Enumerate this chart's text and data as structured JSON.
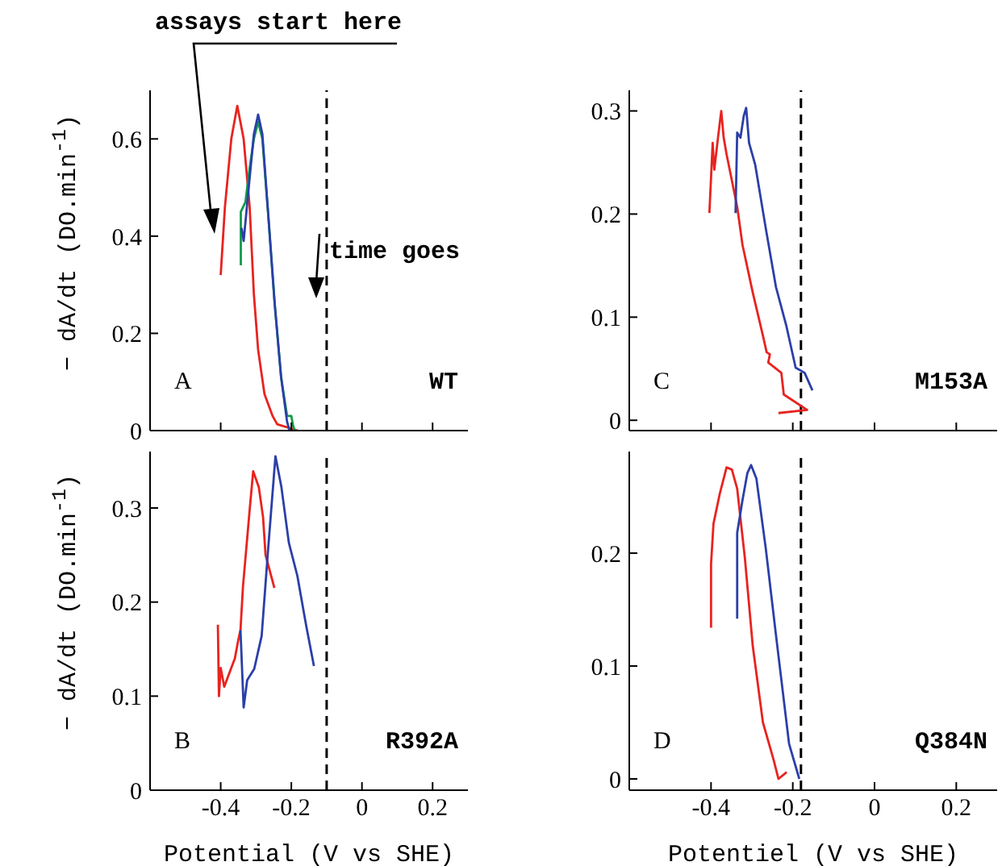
{
  "chart_data": [
    {
      "type": "line",
      "ylabel": "− dA/dt (DO.min$^{-1}$)",
      "annotations": [
        "A",
        "WT",
        "assays start here",
        "time goes"
      ],
      "xlim": [
        -0.6,
        0.3
      ],
      "xticks": [
        -0.4,
        -0.2,
        0,
        0.2
      ],
      "ylim": [
        0,
        0.7
      ],
      "yticks": [
        0,
        0.2,
        0.4,
        0.6
      ],
      "tick_labels": "y",
      "ref_lines": [
        {
          "axis": "x",
          "value": -0.1,
          "color": "#000000",
          "line_style": "dashed"
        }
      ],
      "series": [
        {
          "color": "#e8231f",
          "x": [
            -0.4,
            -0.388,
            -0.37,
            -0.353,
            -0.335,
            -0.318,
            -0.306,
            -0.294,
            -0.276,
            -0.253,
            -0.24,
            -0.182
          ],
          "values": [
            0.32,
            0.46,
            0.6,
            0.668,
            0.6,
            0.46,
            0.28,
            0.166,
            0.075,
            0.03,
            0.013,
            0
          ]
        },
        {
          "color": "#129a4a",
          "x": [
            -0.343,
            -0.343,
            -0.33,
            -0.318,
            -0.306,
            -0.294,
            -0.282,
            -0.265,
            -0.247,
            -0.229,
            -0.212,
            -0.2,
            -0.195,
            -0.19
          ],
          "values": [
            0.34,
            0.45,
            0.47,
            0.54,
            0.6,
            0.635,
            0.6,
            0.44,
            0.26,
            0.11,
            0.03,
            0.03,
            0.01,
            0
          ]
        },
        {
          "color": "#2b3fa8",
          "x": [
            -0.341,
            -0.335,
            -0.318,
            -0.306,
            -0.294,
            -0.282,
            -0.265,
            -0.247,
            -0.229,
            -0.212,
            -0.205
          ],
          "values": [
            0.417,
            0.39,
            0.52,
            0.61,
            0.65,
            0.61,
            0.44,
            0.26,
            0.11,
            0.018,
            0
          ]
        }
      ]
    },
    {
      "type": "line",
      "xlabel": "Potential (V vs SHE)",
      "ylabel": "− dA/dt (DO.min$^{-1}$)",
      "annotations": [
        "B",
        "R392A"
      ],
      "xlim": [
        -0.6,
        0.3
      ],
      "xticks": [
        -0.4,
        -0.2,
        0,
        0.2
      ],
      "ylim": [
        0,
        0.36
      ],
      "yticks": [
        0,
        0.1,
        0.2,
        0.3
      ],
      "ref_lines": [
        {
          "axis": "x",
          "value": -0.1,
          "color": "#000000",
          "line_style": "dashed"
        }
      ],
      "series": [
        {
          "color": "#e8231f",
          "x": [
            -0.408,
            -0.405,
            -0.4,
            -0.39,
            -0.38,
            -0.37,
            -0.36,
            -0.35,
            -0.344,
            -0.337,
            -0.318,
            -0.308,
            -0.292,
            -0.28,
            -0.273,
            -0.248
          ],
          "values": [
            0.176,
            0.1,
            0.13,
            0.11,
            0.12,
            0.13,
            0.14,
            0.16,
            0.17,
            0.216,
            0.298,
            0.339,
            0.322,
            0.29,
            0.25,
            0.215
          ]
        },
        {
          "color": "#2b3fa8",
          "x": [
            -0.344,
            -0.335,
            -0.325,
            -0.305,
            -0.284,
            -0.267,
            -0.245,
            -0.228,
            -0.207,
            -0.183,
            -0.158,
            -0.136
          ],
          "values": [
            0.17,
            0.088,
            0.117,
            0.129,
            0.164,
            0.25,
            0.355,
            0.322,
            0.263,
            0.228,
            0.175,
            0.132
          ]
        }
      ]
    },
    {
      "type": "line",
      "annotations": [
        "C",
        "M153A"
      ],
      "xlim": [
        -0.6,
        0.3
      ],
      "xticks": [
        -0.4,
        -0.2,
        0,
        0.2
      ],
      "ylim": [
        -0.01,
        0.32
      ],
      "yticks": [
        0,
        0.1,
        0.2,
        0.3
      ],
      "tick_labels": "y",
      "ref_lines": [
        {
          "axis": "x",
          "value": -0.18,
          "color": "#000000",
          "line_style": "dashed"
        }
      ],
      "series": [
        {
          "color": "#e8231f",
          "x": [
            -0.404,
            -0.396,
            -0.392,
            -0.383,
            -0.375,
            -0.369,
            -0.362,
            -0.336,
            -0.323,
            -0.298,
            -0.273,
            -0.264,
            -0.256,
            -0.26,
            -0.228,
            -0.222,
            -0.165,
            -0.235
          ],
          "values": [
            0.201,
            0.269,
            0.243,
            0.274,
            0.3,
            0.274,
            0.258,
            0.207,
            0.17,
            0.124,
            0.082,
            0.066,
            0.064,
            0.056,
            0.046,
            0.025,
            0.01,
            0.007
          ]
        },
        {
          "color": "#2b3fa8",
          "x": [
            -0.34,
            -0.336,
            -0.328,
            -0.32,
            -0.314,
            -0.307,
            -0.292,
            -0.266,
            -0.241,
            -0.216,
            -0.193,
            -0.171,
            -0.152
          ],
          "values": [
            0.201,
            0.279,
            0.274,
            0.295,
            0.303,
            0.269,
            0.248,
            0.186,
            0.129,
            0.092,
            0.051,
            0.046,
            0.029
          ]
        }
      ]
    },
    {
      "type": "line",
      "xlabel": "Potentiel (V vs SHE)",
      "annotations": [
        "D",
        "Q384N"
      ],
      "xlim": [
        -0.6,
        0.3
      ],
      "xticks": [
        -0.4,
        -0.2,
        0,
        0.2
      ],
      "ylim": [
        -0.01,
        0.29
      ],
      "yticks": [
        0,
        0.1,
        0.2
      ],
      "ref_lines": [
        {
          "axis": "x",
          "value": -0.18,
          "color": "#000000",
          "line_style": "dashed"
        }
      ],
      "series": [
        {
          "color": "#e8231f",
          "x": [
            -0.4,
            -0.4,
            -0.394,
            -0.379,
            -0.362,
            -0.349,
            -0.336,
            -0.317,
            -0.298,
            -0.273,
            -0.247,
            -0.235,
            -0.215
          ],
          "values": [
            0.134,
            0.19,
            0.226,
            0.252,
            0.276,
            0.274,
            0.257,
            0.195,
            0.118,
            0.05,
            0.017,
            0,
            0.006
          ]
        },
        {
          "color": "#2b3fa8",
          "x": [
            -0.336,
            -0.336,
            -0.323,
            -0.311,
            -0.302,
            -0.289,
            -0.266,
            -0.241,
            -0.209,
            -0.184
          ],
          "values": [
            0.142,
            0.218,
            0.247,
            0.271,
            0.278,
            0.266,
            0.204,
            0.127,
            0.031,
            0
          ]
        }
      ]
    }
  ]
}
